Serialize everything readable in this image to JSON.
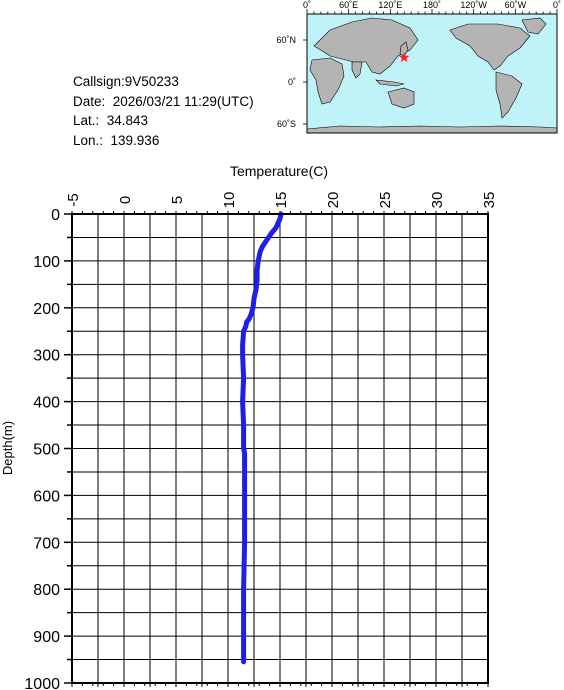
{
  "info": {
    "callsign": "Callsign:9V50233",
    "date": "Date:  2026/03/21 11:29(UTC)",
    "lat": "Lat.:  34.843",
    "lon": "Lon.:  139.936"
  },
  "map": {
    "top_labels": [
      "0˚",
      "60˚E",
      "120˚E",
      "180˚",
      "120˚W",
      "60˚W",
      "0˚"
    ],
    "side_labels": [
      "60˚N",
      "0˚",
      "60˚S"
    ],
    "ocean_color": "#bff3f8",
    "land_color": "#b4b4b4",
    "marker_color": "#ff2020",
    "marker_lat": 34.843,
    "marker_lon": 139.936
  },
  "chart_data": {
    "type": "line",
    "title": "",
    "xlabel": "Temperature(C)",
    "ylabel": "Depth(m)",
    "xlim": [
      -5,
      35
    ],
    "ylim": [
      1000,
      0
    ],
    "x_ticks": [
      "-5",
      "0",
      "5",
      "10",
      "15",
      "20",
      "25",
      "30",
      "35"
    ],
    "y_ticks": [
      "0",
      "100",
      "200",
      "300",
      "400",
      "500",
      "600",
      "700",
      "800",
      "900",
      "1000"
    ],
    "grid": true,
    "line_color": "#1f1fe6",
    "series": [
      {
        "temperature": [
          15.1,
          15.0,
          14.8,
          14.6,
          14.2,
          13.9,
          13.6,
          13.3,
          13.1,
          13.0,
          12.9,
          12.8,
          12.8,
          12.7,
          12.5,
          12.4,
          12.2,
          12.0,
          11.8,
          11.7,
          11.5,
          11.4,
          11.4,
          11.5,
          11.4,
          11.5,
          11.5,
          11.6,
          11.6,
          11.6,
          11.6,
          11.5,
          11.5
        ],
        "depth": [
          0,
          10,
          20,
          30,
          40,
          50,
          60,
          70,
          80,
          90,
          100,
          120,
          140,
          160,
          180,
          200,
          215,
          225,
          230,
          240,
          250,
          280,
          300,
          350,
          400,
          450,
          500,
          510,
          530,
          600,
          700,
          800,
          955
        ]
      }
    ]
  }
}
